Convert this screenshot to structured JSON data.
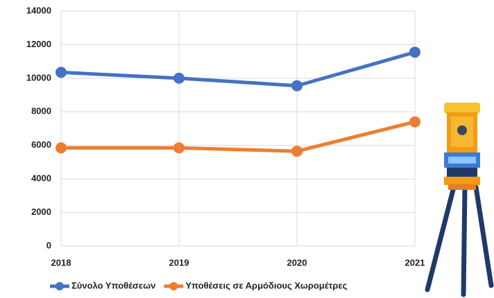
{
  "chart_data": {
    "type": "line",
    "categories": [
      "2018",
      "2019",
      "2020",
      "2021"
    ],
    "series": [
      {
        "name": "Σύνολο Υποθέσεων",
        "color": "#4472c4",
        "values": [
          10350,
          10000,
          9550,
          11550
        ]
      },
      {
        "name": "Υποθέσεις σε Αρμόδιους Χωρομέτρες",
        "color": "#ed7d31",
        "values": [
          5850,
          5850,
          5650,
          7400
        ]
      }
    ],
    "ylim": [
      0,
      14000
    ],
    "yticks": [
      0,
      2000,
      4000,
      6000,
      8000,
      10000,
      12000,
      14000
    ],
    "grid": true,
    "legend": "bottom"
  }
}
